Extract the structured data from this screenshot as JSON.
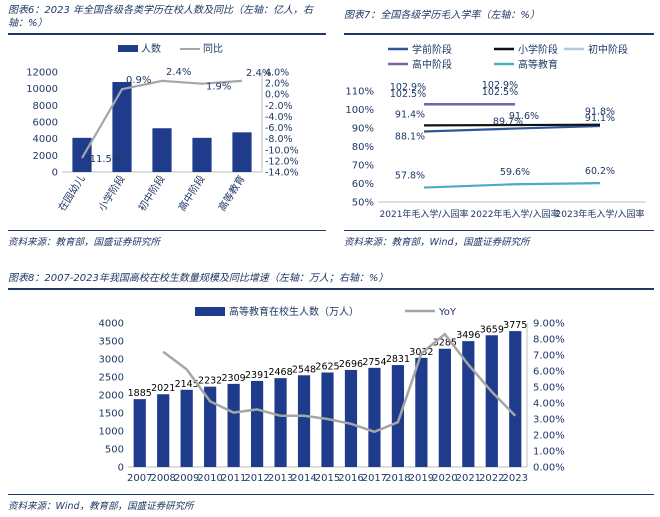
{
  "panels": {
    "fig6_title": "图表6：2023年全国各级各类学历在校人数及同比（左轴：亿人，右轴：%）",
    "fig6_title_l1": "图表6：2023 年全国各级各类学历在校人数及同比（左轴：亿人，右",
    "fig6_title_l2": "轴：%）",
    "fig7_title": "图表7：全国各级学历毛入学率（左轴：%）",
    "fig8_title": "图表8：2007-2023年我国高校在校生数量规模及同比增速（左轴：万人；右轴：%）",
    "source_fig6": "资料来源：教育部，国盛证券研究所",
    "source_fig7": "资料来源：教育部，Wind，国盛证券研究所",
    "source_fig8": "资料来源：Wind，教育部，国盛证券研究所"
  },
  "chart_data": [
    {
      "type": "bar",
      "categories": [
        "在园幼儿",
        "小学阶段",
        "初中阶段",
        "高中阶段",
        "高等教育"
      ],
      "series": [
        {
          "name": "人数",
          "type": "bar",
          "axis": "left",
          "values": [
            4100,
            10800,
            5250,
            4100,
            4760
          ]
        },
        {
          "name": "同比",
          "type": "line",
          "axis": "right",
          "values": [
            -11.5,
            0.9,
            2.4,
            1.9,
            2.4
          ]
        }
      ],
      "data_labels": [
        "-11.5%",
        "0.9%",
        "2.4%",
        "1.9%",
        "2.4%"
      ],
      "ylim": [
        0,
        12000
      ],
      "yticks": [
        "0",
        "2000",
        "4000",
        "6000",
        "8000",
        "10000",
        "12000"
      ],
      "y2lim": [
        -14,
        4
      ],
      "y2ticks": [
        "4.0%",
        "2.0%",
        "0.0%",
        "-2.0%",
        "-4.0%",
        "-6.0%",
        "-8.0%",
        "-10.0%",
        "-12.0%",
        "-14.0%"
      ],
      "colors": {
        "bar": "#1f3b8c",
        "line": "#a6a6a6"
      },
      "legend_position": "top"
    },
    {
      "type": "line",
      "categories": [
        "2021年毛入学/入园率",
        "2022年毛入学/入园率",
        "2023年毛入学/入园率"
      ],
      "series": [
        {
          "name": "学前阶段",
          "color": "#2e5597",
          "values": [
            88.1,
            89.7,
            91.1
          ],
          "labels": [
            "88.1%",
            "89.7%",
            "91.1%"
          ]
        },
        {
          "name": "小学阶段",
          "color": "#111111",
          "values": [
            91.4,
            91.6,
            91.8
          ],
          "labels": [
            "91.4%",
            "91.6%",
            "91.8%"
          ]
        },
        {
          "name": "初中阶段",
          "color": "#b4c7e7",
          "values": [
            102.5,
            102.5,
            null
          ],
          "labels": [
            "102.5%",
            "102.5%",
            ""
          ]
        },
        {
          "name": "高中阶段",
          "color": "#7f5fa8",
          "values": [
            102.9,
            102.9,
            null
          ],
          "labels": [
            "102.9%",
            "102.9%",
            ""
          ]
        },
        {
          "name": "高等教育",
          "color": "#4bacc6",
          "values": [
            57.8,
            59.6,
            60.2
          ],
          "labels": [
            "57.8%",
            "59.6%",
            "60.2%"
          ]
        }
      ],
      "ylim": [
        50,
        110
      ],
      "yticks": [
        "50%",
        "60%",
        "70%",
        "80%",
        "90%",
        "100%",
        "110%"
      ],
      "legend_position": "top"
    },
    {
      "type": "bar",
      "categories": [
        "2007",
        "2008",
        "2009",
        "2010",
        "2011",
        "2012",
        "2013",
        "2014",
        "2015",
        "2016",
        "2017",
        "2018",
        "2019",
        "2020",
        "2021",
        "2022",
        "2023"
      ],
      "series": [
        {
          "name": "高等教育在校生人数（万人）",
          "type": "bar",
          "axis": "left",
          "values": [
            1885,
            2021,
            2145,
            2232,
            2309,
            2391,
            2468,
            2548,
            2625,
            2696,
            2754,
            2831,
            3032,
            3285,
            3496,
            3659,
            3775
          ]
        },
        {
          "name": "YoY",
          "type": "line",
          "axis": "right",
          "values": [
            null,
            7.2,
            6.1,
            4.1,
            3.4,
            3.6,
            3.2,
            3.2,
            3.0,
            2.7,
            2.2,
            2.8,
            7.1,
            8.3,
            6.4,
            4.7,
            3.2
          ]
        }
      ],
      "bar_labels": [
        "1885",
        "2021",
        "2145",
        "2232",
        "2309",
        "2391",
        "2468",
        "2548",
        "2625",
        "2696",
        "2754",
        "2831",
        "3032",
        "3285",
        "3496",
        "3659",
        "3775"
      ],
      "ylim": [
        0,
        4000
      ],
      "yticks": [
        "0",
        "500",
        "1000",
        "1500",
        "2000",
        "2500",
        "3000",
        "3500",
        "4000"
      ],
      "y2lim": [
        0,
        9
      ],
      "y2ticks": [
        "0.00%",
        "1.00%",
        "2.00%",
        "3.00%",
        "4.00%",
        "5.00%",
        "6.00%",
        "7.00%",
        "8.00%",
        "9.00%"
      ],
      "colors": {
        "bar": "#1f3b8c",
        "line": "#a6a6a6"
      },
      "legend_position": "top"
    }
  ]
}
